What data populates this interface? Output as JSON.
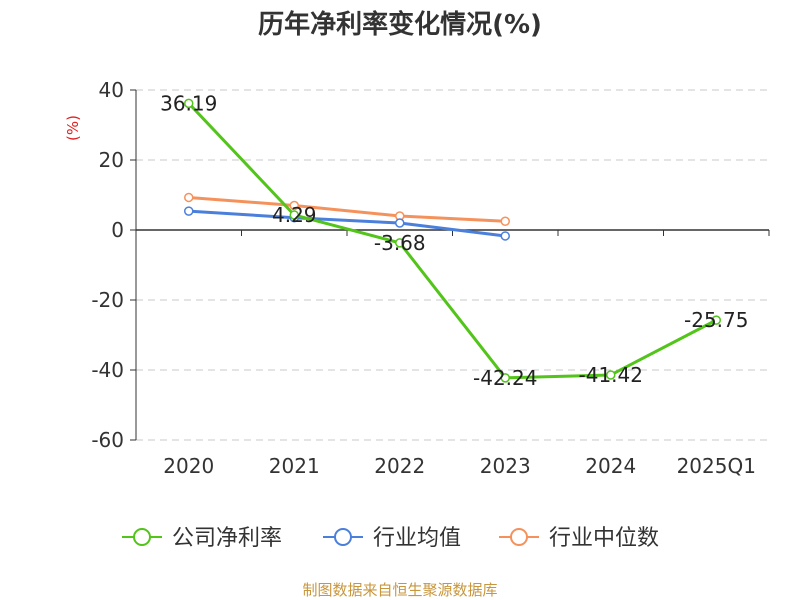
{
  "title": "历年净利率变化情况(%)",
  "source_text": "制图数据来自恒生聚源数据库",
  "chart_data": {
    "type": "line",
    "title": "历年净利率变化情况(%)",
    "ylabel": "(%)",
    "categories": [
      "2020",
      "2021",
      "2022",
      "2023",
      "2024",
      "2025Q1"
    ],
    "ylim": [
      -60,
      40
    ],
    "yticks": [
      40,
      20,
      0,
      -20,
      -40,
      -60
    ],
    "grid": "dashed-horizontal",
    "legend_position": "bottom",
    "series": [
      {
        "name": "公司净利率",
        "color": "#52c41a",
        "values": [
          36.19,
          4.29,
          -3.68,
          -42.24,
          -41.42,
          -25.75
        ],
        "labels": [
          "36.19",
          "4.29",
          "-3.68",
          "-42.24",
          "-41.42",
          "-25.75"
        ]
      },
      {
        "name": "行业均值",
        "color": "#4a7fdc",
        "values": [
          5.4,
          3.5,
          2.0,
          -1.7,
          null,
          null
        ]
      },
      {
        "name": "行业中位数",
        "color": "#f5925c",
        "values": [
          9.3,
          7.0,
          4.0,
          2.5,
          null,
          null
        ]
      }
    ]
  },
  "colors": {
    "axis": "#333333",
    "grid": "#c8c8c8",
    "ylabel": "#e02020",
    "source": "#c8963c"
  }
}
